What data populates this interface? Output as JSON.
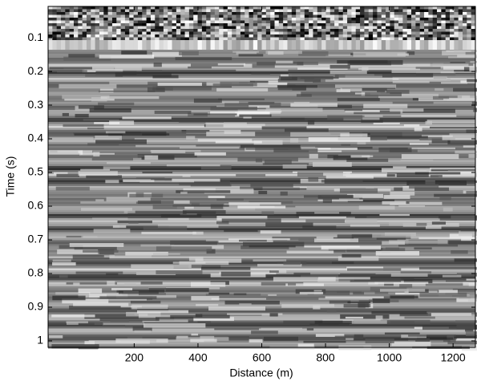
{
  "chart_data": {
    "type": "image",
    "xlabel": "Distance (m)",
    "ylabel": "Time (s)",
    "xlim": [
      -70,
      1270
    ],
    "xticks": [
      200,
      400,
      600,
      800,
      1000,
      1200
    ],
    "ylim": [
      0.007,
      1.019
    ],
    "yticks": [
      0.1,
      0.2,
      0.3,
      0.4,
      0.5,
      0.6,
      0.7,
      0.8,
      0.9,
      1
    ],
    "y_reversed": true,
    "colormap": "gray"
  }
}
